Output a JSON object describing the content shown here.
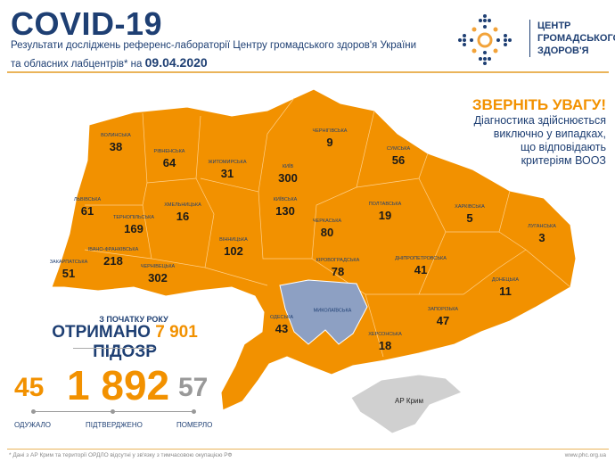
{
  "header": {
    "title": "COVID-19",
    "subtitle_line1": "Результати досліджень референс-лабораторії Центру громадського здоров'я України",
    "subtitle_line2": "та обласних лабцентрів* на",
    "date": "09.04.2020"
  },
  "logo": {
    "line1": "ЦЕНТР",
    "line2": "ГРОМАДСЬКОГО",
    "line3": "ЗДОРОВ'Я"
  },
  "notice": {
    "heading": "ЗВЕРНІТЬ УВАГУ!",
    "lines": [
      "Діагностика здійснюється",
      "виключно у випадках,",
      "що відповідають",
      "критеріям ВООЗ"
    ]
  },
  "colors": {
    "orange": "#f29100",
    "navy": "#1e3f73",
    "mykolaiv": "#8da0c3",
    "crimea": "#d0d0d0"
  },
  "regions": [
    {
      "name": "ВОЛИНСЬКА",
      "value": "38"
    },
    {
      "name": "РІВНЕНСЬКА",
      "value": "64"
    },
    {
      "name": "ЖИТОМИРСЬКА",
      "value": "31"
    },
    {
      "name": "КИЇВ",
      "value": "300"
    },
    {
      "name": "ЧЕРНІГІВСЬКА",
      "value": "9"
    },
    {
      "name": "СУМСЬКА",
      "value": "56"
    },
    {
      "name": "ЛЬВІВСЬКА",
      "value": "61"
    },
    {
      "name": "ТЕРНОПІЛЬСЬКА",
      "value": "169"
    },
    {
      "name": "ХМЕЛЬНИЦЬКА",
      "value": "16"
    },
    {
      "name": "КИЇВСЬКА",
      "value": "130"
    },
    {
      "name": "ЧЕРКАСЬКА",
      "value": "80"
    },
    {
      "name": "ПОЛТАВСЬКА",
      "value": "19"
    },
    {
      "name": "ХАРКІВСЬКА",
      "value": "5"
    },
    {
      "name": "ЛУГАНСЬКА",
      "value": "3"
    },
    {
      "name": "ІВАНО-ФРАНКІВСЬКА",
      "value": "218"
    },
    {
      "name": "ЧЕРНІВЕЦЬКА",
      "value": "302"
    },
    {
      "name": "ЗАКАРПАТСЬКА",
      "value": "51"
    },
    {
      "name": "ВІННИЦЬКА",
      "value": "102"
    },
    {
      "name": "КІРОВОГРАДСЬКА",
      "value": "78"
    },
    {
      "name": "ДНІПРОПЕТРОВСЬКА",
      "value": "41"
    },
    {
      "name": "ДОНЕЦЬКА",
      "value": "11"
    },
    {
      "name": "МИКОЛАЇВСЬКА",
      "value": ""
    },
    {
      "name": "ОДЕСЬКА",
      "value": "43"
    },
    {
      "name": "ЗАПОРІЗЬКА",
      "value": "47"
    },
    {
      "name": "ХЕРСОНСЬКА",
      "value": "18"
    },
    {
      "name": "АР Крим",
      "value": ""
    }
  ],
  "summary": {
    "since": "З ПОЧАТКУ РОКУ",
    "received_prefix": "ОТРИМАНО",
    "received_value": "7 901",
    "received_suffix": "ПІДОЗР",
    "recovered": "45",
    "confirmed": "1 892",
    "deaths": "57",
    "recovered_label": "ОДУЖАЛО",
    "confirmed_label": "ПІДТВЕРДЖЕНО",
    "deaths_label": "ПОМЕРЛО"
  },
  "footer": {
    "note": "* Дані з АР Крим та території ОРДЛО відсутні у зв'язку з тимчасовою окупацією РФ",
    "url": "www.phc.org.ua"
  }
}
